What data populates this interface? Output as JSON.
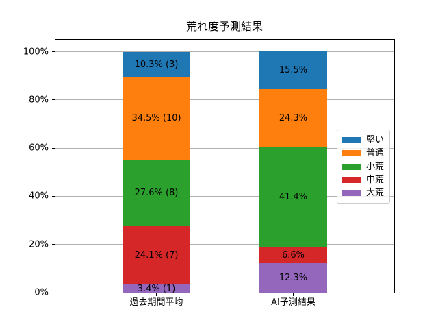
{
  "chart_data": {
    "type": "bar",
    "variant": "stacked-percent",
    "title": "荒れ度予測結果",
    "xlabel": "",
    "ylabel": "",
    "categories": [
      "過去期間平均",
      "AI予測結果"
    ],
    "series": [
      {
        "name": "大荒",
        "color": "#9467bd",
        "values": [
          3.4,
          12.3
        ],
        "bar_labels": [
          "3.4% (1)",
          "12.3%"
        ]
      },
      {
        "name": "中荒",
        "color": "#d62728",
        "values": [
          24.1,
          6.6
        ],
        "bar_labels": [
          "24.1% (7)",
          "6.6%"
        ]
      },
      {
        "name": "小荒",
        "color": "#2ca02c",
        "values": [
          27.6,
          41.4
        ],
        "bar_labels": [
          "27.6% (8)",
          "41.4%"
        ]
      },
      {
        "name": "普通",
        "color": "#ff7f0e",
        "values": [
          34.5,
          24.3
        ],
        "bar_labels": [
          "34.5% (10)",
          "24.3%"
        ]
      },
      {
        "name": "堅い",
        "color": "#1f77b4",
        "values": [
          10.3,
          15.5
        ],
        "bar_labels": [
          "10.3% (3)",
          "15.5%"
        ]
      }
    ],
    "ylim": [
      0,
      105
    ],
    "y_tick_values": [
      0,
      20,
      40,
      60,
      80,
      100
    ],
    "y_tick_labels": [
      "0%",
      "20%",
      "40%",
      "60%",
      "80%",
      "100%"
    ],
    "grid": true,
    "grid_color": "#b0b0b0",
    "label_color": "#000000",
    "legend": {
      "position": "center-right",
      "entries_top_to_bottom": [
        "堅い",
        "普通",
        "小荒",
        "中荒",
        "大荒"
      ]
    }
  }
}
